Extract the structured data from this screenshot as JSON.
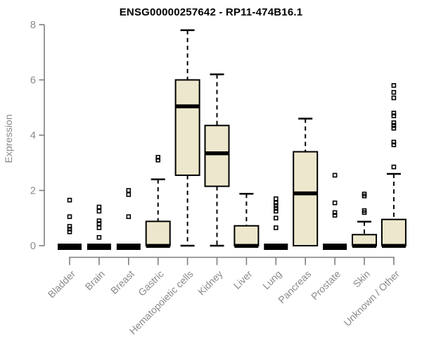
{
  "title": "ENSG00000257642 - RP11-474B16.1",
  "chart_data": {
    "type": "boxplot",
    "title": "ENSG00000257642 - RP11-474B16.1",
    "ylabel": "Expression",
    "xlabel": "",
    "ylim": [
      0,
      8
    ],
    "yticks": [
      0,
      2,
      4,
      6,
      8
    ],
    "grid": false,
    "legend": "none",
    "colors": {
      "box_fill": "#EDE8CD",
      "box_border": "#000000",
      "median": "#000000",
      "whisker": "#000000",
      "axis": "#7f7f7f",
      "tick_label": "#8a8a8a",
      "title": "#000000",
      "background": "#FFFFFF"
    },
    "categories": [
      "Bladder",
      "Brain",
      "Breast",
      "Gastric",
      "Hematopoietic cells",
      "Kidney",
      "Liver",
      "Lung",
      "Pancreas",
      "Prostate",
      "Skin",
      "Unknown / Other"
    ],
    "boxes": [
      {
        "label": "Bladder",
        "q1": 0,
        "median": 0,
        "q3": 0,
        "whisker_low": 0,
        "whisker_high": 0,
        "outliers": [
          1.65,
          1.05,
          0.7,
          0.6,
          0.5
        ]
      },
      {
        "label": "Brain",
        "q1": 0,
        "median": 0,
        "q3": 0,
        "whisker_low": 0,
        "whisker_high": 0,
        "outliers": [
          1.4,
          1.25,
          0.9,
          0.8,
          0.65,
          0.3
        ]
      },
      {
        "label": "Breast",
        "q1": 0,
        "median": 0,
        "q3": 0,
        "whisker_low": 0,
        "whisker_high": 0,
        "outliers": [
          2.0,
          1.85,
          1.05
        ]
      },
      {
        "label": "Gastric",
        "q1": 0,
        "median": 0,
        "q3": 0.88,
        "whisker_low": 0,
        "whisker_high": 2.4,
        "outliers": [
          3.2,
          3.1
        ]
      },
      {
        "label": "Hematopoietic cells",
        "q1": 2.55,
        "median": 5.05,
        "q3": 6.0,
        "whisker_low": 0,
        "whisker_high": 7.8,
        "outliers": []
      },
      {
        "label": "Kidney",
        "q1": 2.15,
        "median": 3.35,
        "q3": 4.35,
        "whisker_low": 0,
        "whisker_high": 6.2,
        "outliers": []
      },
      {
        "label": "Liver",
        "q1": 0,
        "median": 0,
        "q3": 0.72,
        "whisker_low": 0,
        "whisker_high": 1.88,
        "outliers": []
      },
      {
        "label": "Lung",
        "q1": 0,
        "median": 0,
        "q3": 0,
        "whisker_low": 0,
        "whisker_high": 0,
        "outliers": [
          1.7,
          1.55,
          1.45,
          1.35,
          1.25,
          1.0,
          0.65
        ]
      },
      {
        "label": "Pancreas",
        "q1": 0,
        "median": 1.9,
        "q3": 3.4,
        "whisker_low": 0,
        "whisker_high": 4.6,
        "outliers": []
      },
      {
        "label": "Prostate",
        "q1": 0,
        "median": 0,
        "q3": 0,
        "whisker_low": 0,
        "whisker_high": 0,
        "outliers": [
          2.55,
          1.55,
          1.2,
          1.1
        ]
      },
      {
        "label": "Skin",
        "q1": 0,
        "median": 0,
        "q3": 0.4,
        "whisker_low": 0,
        "whisker_high": 0.87,
        "outliers": [
          1.87,
          1.8,
          1.27,
          1.2
        ]
      },
      {
        "label": "Unknown / Other",
        "q1": 0,
        "median": 0,
        "q3": 0.95,
        "whisker_low": 0,
        "whisker_high": 2.6,
        "outliers": [
          5.8,
          5.55,
          5.35,
          4.8,
          4.7,
          4.45,
          4.35,
          4.25,
          3.75,
          3.65,
          2.85
        ]
      }
    ]
  }
}
